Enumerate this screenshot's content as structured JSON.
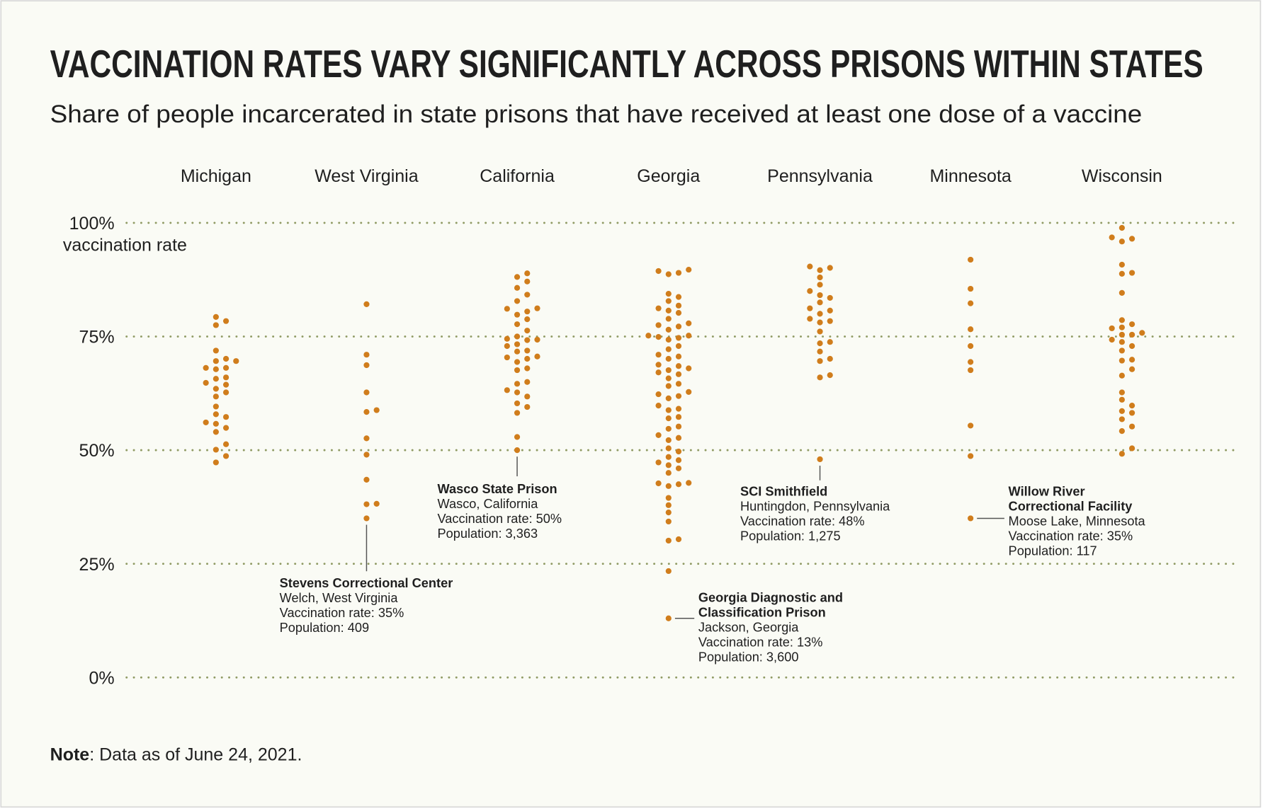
{
  "chart_data": {
    "type": "strip",
    "title": "VACCINATION RATES VARY SIGNIFICANTLY ACROSS PRISONS WITHIN STATES",
    "subtitle": "Share of people incarcerated in state prisons that have received at least one dose of a vaccine",
    "y_label": "vaccination rate",
    "color": "#d07d1c",
    "grid": true,
    "ylim": [
      0,
      100
    ],
    "yticks": [
      {
        "value": 0,
        "label": "0%"
      },
      {
        "value": 25,
        "label": "25%"
      },
      {
        "value": 50,
        "label": "50%"
      },
      {
        "value": 75,
        "label": "75%"
      },
      {
        "value": 100,
        "label": "100%"
      }
    ],
    "series": [
      {
        "name": "Michigan",
        "values": [
          79.3,
          78.4,
          77.5,
          71.9,
          70.1,
          69.6,
          69.6,
          68.1,
          68.1,
          67.8,
          66.0,
          65.7,
          64.8,
          64.4,
          63.5,
          62.7,
          61.8,
          59.6,
          57.9,
          57.3,
          56.1,
          55.8,
          54.9,
          54.0,
          51.3,
          50.1,
          48.7,
          47.3
        ]
      },
      {
        "name": "West Virginia",
        "values": [
          82.1,
          71.0,
          68.7,
          62.7,
          58.4,
          58.8,
          52.6,
          49.0,
          43.5,
          38.2,
          38.1,
          35
        ],
        "annotation": {
          "title": [
            "Stevens Correctional Center"
          ],
          "lines": [
            "Welch, West Virginia",
            "Vaccination rate: 35%",
            "Population: 409"
          ]
        }
      },
      {
        "name": "California",
        "values": [
          88.9,
          88.1,
          87.1,
          85.7,
          84.2,
          82.8,
          81.2,
          81.1,
          80.5,
          79.8,
          78.8,
          77.7,
          76.3,
          75.0,
          74.5,
          74.3,
          74.2,
          73.3,
          72.9,
          71.9,
          71.7,
          70.6,
          70.4,
          70.1,
          69.4,
          68.0,
          67.6,
          65.0,
          64.6,
          63.2,
          62.7,
          61.8,
          60.3,
          59.5,
          58.2,
          52.9,
          50
        ],
        "annotation": {
          "title": [
            "Wasco State Prison"
          ],
          "lines": [
            "Wasco, California",
            "Vaccination rate: 50%",
            "Population: 3,363"
          ]
        }
      },
      {
        "name": "Georgia",
        "values": [
          89.7,
          89.4,
          89.0,
          88.7,
          84.4,
          83.7,
          82.8,
          81.8,
          81.2,
          80.7,
          80.2,
          78.9,
          77.9,
          77.5,
          77.2,
          76.5,
          75.2,
          75.2,
          74.9,
          74.7,
          74.3,
          72.9,
          72.2,
          71.0,
          70.6,
          70.1,
          68.8,
          68.5,
          68.0,
          67.6,
          67.1,
          66.7,
          65.8,
          64.6,
          64.1,
          62.8,
          62.3,
          61.9,
          61.4,
          59.8,
          59.1,
          58.8,
          57.3,
          57.0,
          55.2,
          54.7,
          53.3,
          52.7,
          52.2,
          50.4,
          49.7,
          48.5,
          47.8,
          47.3,
          46.7,
          46.0,
          45.0,
          42.8,
          42.7,
          42.5,
          42.1,
          39.5,
          37.9,
          36.3,
          34.3,
          30.4,
          30.1,
          23.4,
          13
        ],
        "annotation": {
          "title": [
            "Georgia Diagnostic and",
            "Classification Prison"
          ],
          "lines": [
            "Jackson, Georgia",
            "Vaccination rate: 13%",
            "Population: 3,600"
          ]
        }
      },
      {
        "name": "Pennsylvania",
        "values": [
          90.4,
          90.1,
          89.6,
          88.0,
          86.4,
          85.0,
          84.1,
          83.5,
          82.5,
          81.2,
          80.7,
          80.0,
          78.9,
          78.4,
          78.1,
          76.1,
          73.8,
          73.5,
          71.7,
          70.1,
          69.6,
          66.5,
          66.0,
          48
        ],
        "annotation": {
          "title": [
            "SCI Smithfield"
          ],
          "lines": [
            "Huntingdon, Pennsylvania",
            "Vaccination rate: 48%",
            "Population: 1,275"
          ]
        }
      },
      {
        "name": "Minnesota",
        "values": [
          91.9,
          85.5,
          82.3,
          76.6,
          72.9,
          69.4,
          67.6,
          55.4,
          48.7,
          35
        ],
        "annotation": {
          "title": [
            "Willow River",
            "Correctional Facility"
          ],
          "lines": [
            "Moose Lake, Minnesota",
            "Vaccination rate: 35%",
            "Population: 117"
          ]
        }
      },
      {
        "name": "Wisconsin",
        "values": [
          98.9,
          96.8,
          96.5,
          95.9,
          90.8,
          89.0,
          88.8,
          84.6,
          78.6,
          77.7,
          77.0,
          76.8,
          75.8,
          75.4,
          75.4,
          74.3,
          73.8,
          72.9,
          71.9,
          69.9,
          69.7,
          67.8,
          66.4,
          62.7,
          61.1,
          59.8,
          58.6,
          58.2,
          56.8,
          55.2,
          54.2,
          50.4,
          49.2
        ]
      }
    ],
    "note": {
      "label": "Note",
      "text": ":  Data as of June 24, 2021."
    }
  }
}
